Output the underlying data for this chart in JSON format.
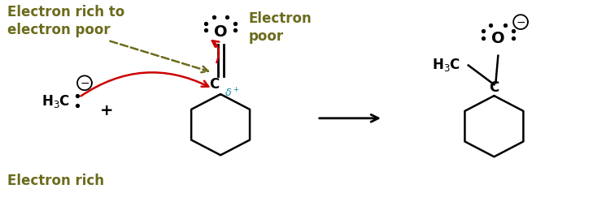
{
  "bg_color": "#ffffff",
  "olive_color": "#6b6b1e",
  "black": "#000000",
  "red": "#cc0000",
  "blue_cyan": "#1a8fa0",
  "text_electron_rich_to_poor": "Electron rich to\nelectron poor",
  "text_electron_poor": "Electron\npoor",
  "text_electron_rich": "Electron rich",
  "figsize": [
    7.45,
    2.55
  ],
  "dpi": 100
}
